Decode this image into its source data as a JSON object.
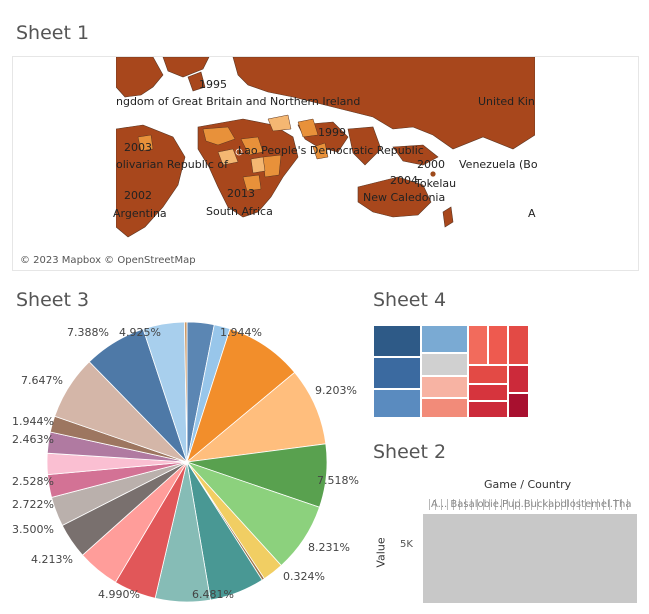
{
  "sheets": {
    "sheet1_title": "Sheet 1",
    "sheet2_title": "Sheet 2",
    "sheet3_title": "Sheet 3",
    "sheet4_title": "Sheet 4"
  },
  "map": {
    "attribution": "© 2023 Mapbox © OpenStreetMap",
    "labels": {
      "uk_left": "ngdom of Great Britain and Northern Ireland",
      "uk_right": "United Kin",
      "year_1995": "1995",
      "year_1999": "1999",
      "year_2003": "2003",
      "bolivia": "olivarian Republic of",
      "lao": "Lao People's Democratic Republic",
      "year_2000": "2000",
      "venezuela": "Venezuela (Bo",
      "year_2004": "2004",
      "tokelau": "Tokelau",
      "year_2002": "2002",
      "year_2013": "2013",
      "new_caledonia": "New Caledonia",
      "argentina": "Argentina",
      "south_africa": "South Africa",
      "a_right": "A"
    }
  },
  "pie": {
    "colors": [
      "#5b86b3",
      "#98c6ea",
      "#f28e2b",
      "#ffbe7d",
      "#59a14f",
      "#8cd17d",
      "#f1ce63",
      "#a0764a",
      "#499894",
      "#86bcb6",
      "#e15759",
      "#ff9d9a",
      "#79706e",
      "#bab0ac",
      "#d37295",
      "#fabfd2",
      "#b07aa1",
      "#9d7660",
      "#d4b6a8",
      "#4e79a7",
      "#a8cfed",
      "#cc9966"
    ],
    "labels": {
      "p7388": "7.388%",
      "p4925": "4.925%",
      "p1944a": "1.944%",
      "p9203": "9.203%",
      "p7647": "7.647%",
      "p1944b": "1.944%",
      "p2463": "2.463%",
      "p7518": "7.518%",
      "p2528": "2.528%",
      "p2722": "2.722%",
      "p8231": "8.231%",
      "p3500": "3.500%",
      "p0324": "0.324%",
      "p4213": "4.213%",
      "p4990": "4.990%",
      "p6481": "6.481%"
    }
  },
  "treemap": {
    "colors": [
      "#2e5a87",
      "#3b6aa0",
      "#5a8bbf",
      "#7aaad3",
      "#d0d0d0",
      "#f7b3a3",
      "#f28b79",
      "#f26b5c",
      "#ee5a4f",
      "#e34a45",
      "#d6343d",
      "#cc2a3a",
      "#a8102f"
    ]
  },
  "bar": {
    "header": "Game / Country",
    "header_text": "A...  Basalobie.Pup.Buckapdlostemel.Tha",
    "yaxis_title": "Value",
    "ytick": "5K",
    "bar_color": "#c8c8c8"
  }
}
